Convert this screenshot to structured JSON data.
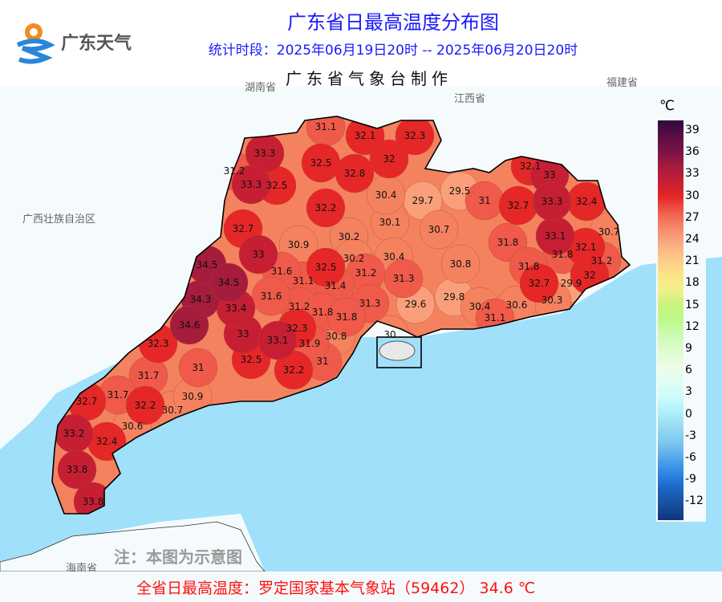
{
  "header": {
    "logo_text": "广东天气",
    "title": "广东省日最高温度分布图",
    "period": "统计时段：2025年06月19日20时 -- 2025年06月20日20时",
    "producer": "广东省气象台制作"
  },
  "neighbor_labels": [
    "湖南省",
    "江西省",
    "福建省",
    "广西壮族自治区",
    "海南省"
  ],
  "note": "注：本图为示意图",
  "footer": "全省日最高温度：罗定国家基本气象站（59462） 34.6 ℃",
  "legend": {
    "unit": "℃",
    "ticks": [
      "39",
      "36",
      "33",
      "30",
      "27",
      "24",
      "21",
      "18",
      "15",
      "12",
      "9",
      "6",
      "3",
      "0",
      "-3",
      "-6",
      "-9",
      "-12"
    ],
    "colors": [
      "#2b0a3d",
      "#5a0d45",
      "#7a1248",
      "#a51c3c",
      "#c61f33",
      "#e52727",
      "#f0604c",
      "#f6896a",
      "#fbab82",
      "#fdc98a",
      "#fde38a",
      "#f2f08a",
      "#c8f37e",
      "#bdf98a",
      "#cdfbb4",
      "#dcfccf",
      "#ecfde4",
      "#e3fdf4",
      "#cafcfb",
      "#b0effa",
      "#95daf3",
      "#7cc6ee",
      "#52a6ea",
      "#2b84e4",
      "#1b64c3",
      "#174f9c",
      "#10347f"
    ]
  },
  "stations": [
    "31.1",
    "32.1",
    "32.3",
    "33.3",
    "31.2",
    "32.5",
    "32.8",
    "32",
    "33.3",
    "32.5",
    "30.4",
    "29.7",
    "29.5",
    "31",
    "32.1",
    "33",
    "32.7",
    "33.3",
    "32.4",
    "32.2",
    "30.1",
    "30.7",
    "30.7",
    "32.7",
    "33.1",
    "31.8",
    "32.1",
    "30.9",
    "30.2",
    "33",
    "30.2",
    "30.4",
    "31.8",
    "31.2",
    "30.8",
    "34.5",
    "31.8",
    "32.5",
    "31.6",
    "32",
    "34.5",
    "31.1",
    "31.4",
    "31.2",
    "31.3",
    "32.7",
    "29.9",
    "34.3",
    "31.6",
    "33.4",
    "31.2",
    "31.8",
    "31.8",
    "31.3",
    "29.6",
    "29.8",
    "30.4",
    "30.6",
    "30.3",
    "31.1",
    "34.6",
    "32.3",
    "33",
    "33.1",
    "31.9",
    "30.8",
    "30",
    "32.3",
    "32.5",
    "31",
    "32.2",
    "31.7",
    "31",
    "32.7",
    "31.7",
    "30.9",
    "32.2",
    "30.7",
    "30.6",
    "33.2",
    "32.4",
    "33.8",
    "33.8"
  ],
  "colors": {
    "sea": "#a0e0fa",
    "land": "#f5fbfc",
    "title": "#1a1aff",
    "footer": "#ff1010"
  }
}
